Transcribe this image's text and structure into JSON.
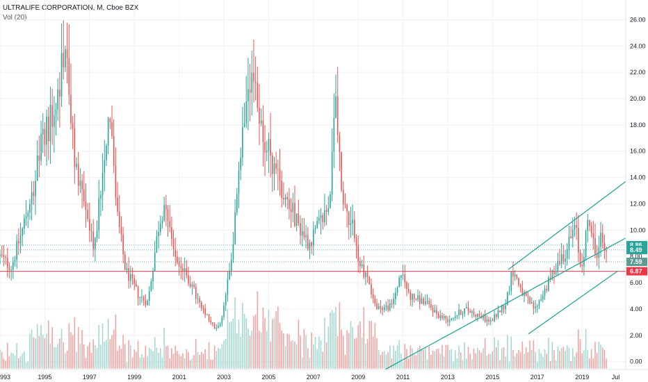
{
  "header": {
    "symbol_line": "ULTRALIFE CORPORATION, M, Cboe BZX",
    "volume_line": "Vol (20)"
  },
  "colors": {
    "up": "#26a69a",
    "down": "#ef5350",
    "vol_up": "#a5d8d1",
    "vol_down": "#f5a3a1",
    "channel": "#26a69a",
    "support": "#f23645",
    "grid": "#eef0f3",
    "tag_teal": "#26a69a",
    "tag_gray": "#5d9c94",
    "tag_red": "#f23645"
  },
  "chart_data": {
    "type": "candlestick",
    "title": "ULTRALIFE CORPORATION, M, Cboe BZX",
    "interval": "monthly",
    "y_ticks": [
      "26.00",
      "24.00",
      "22.00",
      "20.00",
      "18.00",
      "16.00",
      "14.00",
      "12.00",
      "10.00",
      "8.00",
      "6.00",
      "4.00",
      "2.00",
      "0.00"
    ],
    "y_tick_values": [
      26,
      24,
      22,
      20,
      18,
      16,
      14,
      12,
      10,
      8,
      6,
      4,
      2,
      0
    ],
    "ylim": [
      -0.6,
      27.5
    ],
    "x_ticks": [
      "993",
      "1995",
      "1997",
      "1999",
      "2001",
      "2003",
      "2005",
      "2007",
      "2009",
      "2011",
      "2013",
      "2015",
      "2017",
      "2019",
      "Jul"
    ],
    "x_tick_years": [
      1993,
      1995,
      1997,
      1999,
      2001,
      2003,
      2005,
      2007,
      2009,
      2011,
      2013,
      2015,
      2017,
      2019,
      2020.5
    ],
    "xlim": [
      1993.0,
      2020.95
    ],
    "key_points": [
      {
        "year": 1993.0,
        "close": 8.0
      },
      {
        "year": 1993.5,
        "close": 7.2
      },
      {
        "year": 1994.0,
        "close": 10.0
      },
      {
        "year": 1994.5,
        "close": 13.5
      },
      {
        "year": 1995.0,
        "close": 17.5
      },
      {
        "year": 1995.5,
        "close": 19.0
      },
      {
        "year": 1995.9,
        "close": 24.5
      },
      {
        "year": 1996.3,
        "close": 15.5
      },
      {
        "year": 1996.8,
        "close": 12.0
      },
      {
        "year": 1997.2,
        "close": 8.5
      },
      {
        "year": 1997.6,
        "close": 15.0
      },
      {
        "year": 1997.9,
        "close": 19.5
      },
      {
        "year": 1998.2,
        "close": 11.5
      },
      {
        "year": 1998.6,
        "close": 7.0
      },
      {
        "year": 1999.2,
        "close": 5.0
      },
      {
        "year": 1999.6,
        "close": 4.5
      },
      {
        "year": 2000.1,
        "close": 10.5
      },
      {
        "year": 2000.4,
        "close": 12.5
      },
      {
        "year": 2000.8,
        "close": 8.0
      },
      {
        "year": 2001.5,
        "close": 6.0
      },
      {
        "year": 2002.0,
        "close": 4.0
      },
      {
        "year": 2002.6,
        "close": 2.5
      },
      {
        "year": 2002.9,
        "close": 3.0
      },
      {
        "year": 2003.4,
        "close": 9.0
      },
      {
        "year": 2003.9,
        "close": 18.0
      },
      {
        "year": 2004.3,
        "close": 21.0
      },
      {
        "year": 2004.8,
        "close": 17.0
      },
      {
        "year": 2005.3,
        "close": 14.5
      },
      {
        "year": 2005.8,
        "close": 12.5
      },
      {
        "year": 2006.3,
        "close": 10.5
      },
      {
        "year": 2006.8,
        "close": 9.0
      },
      {
        "year": 2007.3,
        "close": 10.5
      },
      {
        "year": 2007.7,
        "close": 12.0
      },
      {
        "year": 2008.0,
        "close": 19.5
      },
      {
        "year": 2008.3,
        "close": 12.0
      },
      {
        "year": 2008.8,
        "close": 10.5
      },
      {
        "year": 2009.0,
        "close": 7.5
      },
      {
        "year": 2009.4,
        "close": 6.5
      },
      {
        "year": 2009.8,
        "close": 4.0
      },
      {
        "year": 2010.5,
        "close": 4.2
      },
      {
        "year": 2010.9,
        "close": 6.8
      },
      {
        "year": 2011.3,
        "close": 5.0
      },
      {
        "year": 2012.0,
        "close": 4.5
      },
      {
        "year": 2012.6,
        "close": 3.5
      },
      {
        "year": 2013.0,
        "close": 3.2
      },
      {
        "year": 2013.8,
        "close": 4.0
      },
      {
        "year": 2014.4,
        "close": 3.5
      },
      {
        "year": 2014.9,
        "close": 3.0
      },
      {
        "year": 2015.6,
        "close": 4.5
      },
      {
        "year": 2015.9,
        "close": 7.0
      },
      {
        "year": 2016.4,
        "close": 5.0
      },
      {
        "year": 2016.9,
        "close": 4.0
      },
      {
        "year": 2017.5,
        "close": 6.0
      },
      {
        "year": 2017.9,
        "close": 7.5
      },
      {
        "year": 2018.3,
        "close": 8.5
      },
      {
        "year": 2018.7,
        "close": 10.3
      },
      {
        "year": 2018.95,
        "close": 7.0
      },
      {
        "year": 2019.3,
        "close": 11.0
      },
      {
        "year": 2019.6,
        "close": 8.0
      },
      {
        "year": 2019.85,
        "close": 9.5
      },
      {
        "year": 2020.05,
        "close": 8.5
      }
    ],
    "channel_lines": [
      {
        "name": "upper",
        "x1": 2015.7,
        "y1": 7.0,
        "x2": 2020.95,
        "y2": 13.7
      },
      {
        "name": "lower",
        "x1": 2010.2,
        "y1": -0.6,
        "x2": 2020.95,
        "y2": 9.4
      },
      {
        "name": "parallel",
        "x1": 2016.6,
        "y1": 2.1,
        "x2": 2020.6,
        "y2": 6.9
      }
    ],
    "horizontal_levels": [
      {
        "value": 6.87,
        "label": "6.87",
        "color": "red",
        "style": "solid"
      },
      {
        "value": 8.86,
        "label": "8.86",
        "color": "teal",
        "style": "dotted"
      },
      {
        "value": 8.49,
        "label": "8.49",
        "color": "teal",
        "style": "dotted"
      },
      {
        "value": 7.59,
        "label": "7.59",
        "color": "gray",
        "style": "dotted"
      }
    ]
  }
}
